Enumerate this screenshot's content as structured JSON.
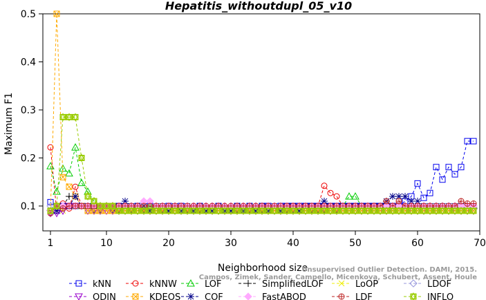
{
  "chart_data": {
    "type": "line",
    "title": "Hepatitis_withoutdupl_05_v10",
    "xlabel": "Neighborhood size",
    "ylabel": "Maximum F1",
    "xlim": [
      1,
      70
    ],
    "ylim": [
      0.07,
      0.5
    ],
    "x_ticks": [
      "1",
      "10",
      "20",
      "30",
      "40",
      "50",
      "60",
      "70"
    ],
    "y_ticks": [
      "0.1",
      "0.2",
      "0.3",
      "0.4",
      "0.5"
    ],
    "legend_placement": "bottom",
    "credit_lines": [
      "Unsupervised Outlier Detection. DAMI, 2015.",
      "Campos, Zimek, Sander, Campello, Micenkova, Schubert, Assent, Houle"
    ],
    "x": [
      1,
      2,
      3,
      4,
      5,
      6,
      7,
      8,
      9,
      10,
      11,
      12,
      13,
      14,
      15,
      16,
      17,
      18,
      19,
      20,
      21,
      22,
      23,
      24,
      25,
      26,
      27,
      28,
      29,
      30,
      31,
      32,
      33,
      34,
      35,
      36,
      37,
      38,
      39,
      40,
      41,
      42,
      43,
      44,
      45,
      46,
      47,
      48,
      49,
      50,
      51,
      52,
      53,
      54,
      55,
      56,
      57,
      58,
      59,
      60,
      61,
      62,
      63,
      64,
      65,
      66,
      67,
      68,
      69
    ],
    "series": [
      {
        "name": "kNN",
        "color": "#0000ee",
        "marker": "square",
        "values": [
          0.108,
          0.09,
          0.1,
          0.1,
          0.1,
          0.1,
          0.09,
          0.1,
          0.09,
          0.1,
          0.09,
          0.1,
          0.09,
          0.09,
          0.1,
          0.09,
          0.1,
          0.09,
          0.09,
          0.1,
          0.09,
          0.1,
          0.09,
          0.09,
          0.1,
          0.09,
          0.09,
          0.1,
          0.09,
          0.09,
          0.1,
          0.09,
          0.1,
          0.09,
          0.1,
          0.1,
          0.09,
          0.1,
          0.1,
          0.1,
          0.1,
          0.1,
          0.1,
          0.1,
          0.1,
          0.1,
          0.1,
          0.1,
          0.1,
          0.1,
          0.1,
          0.1,
          0.1,
          0.1,
          0.1,
          0.1,
          0.1,
          0.11,
          0.12,
          0.147,
          0.117,
          0.127,
          0.181,
          0.155,
          0.181,
          0.166,
          0.181,
          0.235,
          0.235
        ]
      },
      {
        "name": "kNNW",
        "color": "#ee0000",
        "marker": "circle",
        "values": [
          0.222,
          0.09,
          0.105,
          0.095,
          0.14,
          0.1,
          0.1,
          0.1,
          0.1,
          0.1,
          0.1,
          0.09,
          0.1,
          0.1,
          0.09,
          0.1,
          0.1,
          0.09,
          0.09,
          0.1,
          0.09,
          0.1,
          0.09,
          0.1,
          0.09,
          0.09,
          0.1,
          0.09,
          0.09,
          0.09,
          0.1,
          0.09,
          0.09,
          0.1,
          0.09,
          0.09,
          0.09,
          0.09,
          0.1,
          0.09,
          0.09,
          0.1,
          0.1,
          0.1,
          0.142,
          0.127,
          0.12,
          0.1,
          0.1,
          0.1,
          0.1,
          0.1,
          0.1,
          0.1,
          0.1,
          0.1,
          0.1,
          0.1,
          0.1,
          0.1,
          0.1,
          0.1,
          0.1,
          0.1,
          0.1,
          0.1,
          0.1,
          0.1,
          0.1
        ]
      },
      {
        "name": "LOF",
        "color": "#00cc00",
        "marker": "triangle-up",
        "values": [
          0.183,
          0.13,
          0.178,
          0.168,
          0.222,
          0.148,
          0.13,
          0.11,
          0.1,
          0.1,
          0.09,
          0.09,
          0.1,
          0.1,
          0.09,
          0.09,
          0.1,
          0.09,
          0.09,
          0.09,
          0.1,
          0.09,
          0.09,
          0.09,
          0.1,
          0.09,
          0.09,
          0.1,
          0.09,
          0.09,
          0.1,
          0.09,
          0.1,
          0.1,
          0.1,
          0.09,
          0.09,
          0.1,
          0.09,
          0.09,
          0.09,
          0.09,
          0.09,
          0.09,
          0.09,
          0.09,
          0.09,
          0.1,
          0.12,
          0.12,
          0.1,
          0.1,
          0.1,
          0.1,
          0.1,
          0.1,
          0.1,
          0.1,
          0.1,
          0.1,
          0.1,
          0.1,
          0.1,
          0.1,
          0.1,
          0.1,
          0.1,
          0.1,
          0.1
        ]
      },
      {
        "name": "SimplifiedLOF",
        "color": "#000000",
        "marker": "plus",
        "values": [
          0.09,
          0.1,
          0.1,
          0.12,
          0.12,
          0.1,
          0.1,
          0.09,
          0.09,
          0.1,
          0.09,
          0.09,
          0.1,
          0.09,
          0.1,
          0.09,
          0.09,
          0.1,
          0.09,
          0.09,
          0.1,
          0.09,
          0.09,
          0.1,
          0.09,
          0.09,
          0.09,
          0.1,
          0.09,
          0.09,
          0.09,
          0.1,
          0.09,
          0.09,
          0.09,
          0.09,
          0.1,
          0.09,
          0.09,
          0.09,
          0.09,
          0.1,
          0.09,
          0.09,
          0.09,
          0.1,
          0.09,
          0.1,
          0.1,
          0.1,
          0.1,
          0.1,
          0.1,
          0.1,
          0.1,
          0.1,
          0.1,
          0.1,
          0.1,
          0.1,
          0.1,
          0.1,
          0.1,
          0.1,
          0.1,
          0.1,
          0.1,
          0.1,
          0.1
        ]
      },
      {
        "name": "LoOP",
        "color": "#eeee00",
        "marker": "x",
        "values": [
          0.09,
          0.09,
          0.09,
          0.1,
          0.1,
          0.1,
          0.09,
          0.09,
          0.09,
          0.09,
          0.09,
          0.09,
          0.09,
          0.09,
          0.09,
          0.09,
          0.09,
          0.09,
          0.09,
          0.09,
          0.09,
          0.09,
          0.09,
          0.09,
          0.09,
          0.09,
          0.09,
          0.09,
          0.09,
          0.09,
          0.09,
          0.09,
          0.09,
          0.09,
          0.09,
          0.09,
          0.09,
          0.09,
          0.09,
          0.09,
          0.09,
          0.09,
          0.09,
          0.09,
          0.09,
          0.09,
          0.09,
          0.09,
          0.09,
          0.09,
          0.09,
          0.09,
          0.09,
          0.09,
          0.09,
          0.09,
          0.09,
          0.09,
          0.09,
          0.09,
          0.09,
          0.09,
          0.09,
          0.09,
          0.09,
          0.09,
          0.09,
          0.09,
          0.09
        ]
      },
      {
        "name": "LDOF",
        "color": "#9999dd",
        "marker": "diamond",
        "values": [
          0.1,
          0.09,
          0.1,
          0.1,
          0.1,
          0.1,
          0.1,
          0.1,
          0.1,
          0.1,
          0.1,
          0.1,
          0.1,
          0.1,
          0.1,
          0.1,
          0.1,
          0.1,
          0.1,
          0.1,
          0.1,
          0.1,
          0.1,
          0.1,
          0.1,
          0.1,
          0.1,
          0.1,
          0.1,
          0.1,
          0.1,
          0.1,
          0.1,
          0.1,
          0.1,
          0.1,
          0.1,
          0.1,
          0.1,
          0.1,
          0.1,
          0.1,
          0.1,
          0.1,
          0.1,
          0.1,
          0.1,
          0.1,
          0.1,
          0.1,
          0.1,
          0.1,
          0.1,
          0.1,
          0.1,
          0.1,
          0.1,
          0.1,
          0.1,
          0.1,
          0.1,
          0.1,
          0.1,
          0.1,
          0.1,
          0.1,
          0.1,
          0.1,
          0.1
        ]
      },
      {
        "name": "ODIN",
        "color": "#9900cc",
        "marker": "triangle-down",
        "values": [
          0.085,
          0.085,
          0.09,
          0.1,
          0.1,
          0.1,
          0.09,
          0.09,
          0.09,
          0.09,
          0.09,
          0.09,
          0.09,
          0.09,
          0.09,
          0.09,
          0.09,
          0.09,
          0.09,
          0.09,
          0.09,
          0.09,
          0.09,
          0.09,
          0.09,
          0.09,
          0.09,
          0.09,
          0.09,
          0.09,
          0.09,
          0.09,
          0.09,
          0.09,
          0.09,
          0.09,
          0.09,
          0.09,
          0.09,
          0.09,
          0.09,
          0.09,
          0.09,
          0.09,
          0.09,
          0.09,
          0.09,
          0.09,
          0.09,
          0.09,
          0.09,
          0.09,
          0.09,
          0.09,
          0.09,
          0.09,
          0.09,
          0.09,
          0.09,
          0.09,
          0.09,
          0.09,
          0.09,
          0.09,
          0.09,
          0.09,
          0.09,
          0.09,
          0.09
        ]
      },
      {
        "name": "KDEOS",
        "color": "#ffaa00",
        "marker": "square-x",
        "values": [
          0.09,
          0.5,
          0.16,
          0.14,
          0.12,
          0.1,
          0.09,
          0.09,
          0.09,
          0.09,
          0.09,
          0.09,
          0.09,
          0.09,
          0.09,
          0.09,
          0.09,
          0.09,
          0.09,
          0.09,
          0.09,
          0.09,
          0.09,
          0.09,
          0.09,
          0.09,
          0.09,
          0.09,
          0.09,
          0.09,
          0.09,
          0.09,
          0.09,
          0.09,
          0.09,
          0.09,
          0.09,
          0.09,
          0.09,
          0.09,
          0.09,
          0.09,
          0.09,
          0.09,
          0.09,
          0.09,
          0.09,
          0.09,
          0.09,
          0.09,
          0.09,
          0.09,
          0.09,
          0.09,
          0.09,
          0.09,
          0.09,
          0.09,
          0.09,
          0.09,
          0.09,
          0.09,
          0.09,
          0.09,
          0.09,
          0.09,
          0.09,
          0.09,
          0.09
        ]
      },
      {
        "name": "COF",
        "color": "#000088",
        "marker": "asterisk",
        "values": [
          0.09,
          0.09,
          0.1,
          0.1,
          0.12,
          0.1,
          0.1,
          0.1,
          0.1,
          0.1,
          0.1,
          0.1,
          0.11,
          0.1,
          0.1,
          0.1,
          0.09,
          0.1,
          0.1,
          0.09,
          0.1,
          0.09,
          0.1,
          0.09,
          0.1,
          0.09,
          0.09,
          0.1,
          0.09,
          0.09,
          0.1,
          0.09,
          0.1,
          0.09,
          0.1,
          0.09,
          0.1,
          0.09,
          0.1,
          0.1,
          0.09,
          0.1,
          0.1,
          0.1,
          0.11,
          0.1,
          0.1,
          0.1,
          0.1,
          0.1,
          0.1,
          0.1,
          0.1,
          0.1,
          0.11,
          0.12,
          0.12,
          0.12,
          0.11,
          0.11,
          0.1,
          0.1,
          0.1,
          0.1,
          0.1,
          0.1,
          0.1,
          0.1,
          0.1
        ]
      },
      {
        "name": "FastABOD",
        "color": "#ffaaff",
        "marker": "diamond-filled",
        "values": [
          0.09,
          0.1,
          0.1,
          0.1,
          0.1,
          0.1,
          0.1,
          0.1,
          0.1,
          0.1,
          0.1,
          0.1,
          0.1,
          0.1,
          0.1,
          0.11,
          0.11,
          0.1,
          0.1,
          0.1,
          0.1,
          0.1,
          0.1,
          0.1,
          0.1,
          0.1,
          0.1,
          0.1,
          0.1,
          0.1,
          0.1,
          0.1,
          0.1,
          0.1,
          0.1,
          0.1,
          0.1,
          0.1,
          0.1,
          0.1,
          0.1,
          0.1,
          0.1,
          0.1,
          0.1,
          0.1,
          0.1,
          0.1,
          0.1,
          0.1,
          0.1,
          0.1,
          0.1,
          0.1,
          0.1,
          0.1,
          0.1,
          0.1,
          0.1,
          0.1,
          0.1,
          0.1,
          0.1,
          0.1,
          0.1,
          0.1,
          0.1,
          0.1,
          0.1
        ]
      },
      {
        "name": "LDF",
        "color": "#bb2222",
        "marker": "circle-plus",
        "values": [
          0.085,
          0.1,
          0.095,
          0.1,
          0.1,
          0.1,
          0.1,
          0.1,
          0.1,
          0.1,
          0.1,
          0.1,
          0.1,
          0.1,
          0.1,
          0.1,
          0.1,
          0.1,
          0.1,
          0.1,
          0.1,
          0.1,
          0.1,
          0.1,
          0.1,
          0.1,
          0.1,
          0.1,
          0.1,
          0.1,
          0.1,
          0.1,
          0.1,
          0.1,
          0.1,
          0.1,
          0.1,
          0.1,
          0.1,
          0.1,
          0.1,
          0.1,
          0.1,
          0.1,
          0.1,
          0.1,
          0.1,
          0.1,
          0.1,
          0.1,
          0.1,
          0.1,
          0.1,
          0.1,
          0.11,
          0.1,
          0.11,
          0.1,
          0.1,
          0.1,
          0.1,
          0.1,
          0.1,
          0.1,
          0.1,
          0.1,
          0.11,
          0.105,
          0.105
        ]
      },
      {
        "name": "INFLO",
        "color": "#99cc00",
        "marker": "star-box",
        "values": [
          0.09,
          0.1,
          0.285,
          0.285,
          0.285,
          0.2,
          0.12,
          0.11,
          0.1,
          0.1,
          0.1,
          0.09,
          0.09,
          0.09,
          0.09,
          0.09,
          0.09,
          0.09,
          0.09,
          0.09,
          0.09,
          0.09,
          0.09,
          0.09,
          0.09,
          0.09,
          0.09,
          0.09,
          0.09,
          0.09,
          0.09,
          0.09,
          0.09,
          0.09,
          0.09,
          0.09,
          0.09,
          0.09,
          0.09,
          0.09,
          0.09,
          0.09,
          0.09,
          0.09,
          0.09,
          0.09,
          0.09,
          0.09,
          0.09,
          0.09,
          0.09,
          0.09,
          0.09,
          0.09,
          0.09,
          0.09,
          0.09,
          0.09,
          0.09,
          0.09,
          0.09,
          0.09,
          0.09,
          0.09,
          0.09,
          0.09,
          0.09,
          0.09,
          0.09
        ]
      }
    ]
  }
}
